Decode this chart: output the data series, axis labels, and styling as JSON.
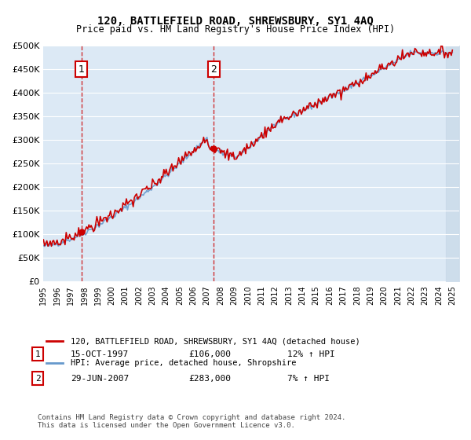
{
  "title": "120, BATTLEFIELD ROAD, SHREWSBURY, SY1 4AQ",
  "subtitle": "Price paid vs. HM Land Registry's House Price Index (HPI)",
  "legend_line1": "120, BATTLEFIELD ROAD, SHREWSBURY, SY1 4AQ (detached house)",
  "legend_line2": "HPI: Average price, detached house, Shropshire",
  "annotation1_label": "1",
  "annotation1_date": "15-OCT-1997",
  "annotation1_price": "£106,000",
  "annotation1_hpi": "12% ↑ HPI",
  "annotation1_year": 1997.79,
  "annotation1_value": 106000,
  "annotation2_label": "2",
  "annotation2_date": "29-JUN-2007",
  "annotation2_price": "£283,000",
  "annotation2_hpi": "7% ↑ HPI",
  "annotation2_year": 2007.49,
  "annotation2_value": 283000,
  "footer1": "Contains HM Land Registry data © Crown copyright and database right 2024.",
  "footer2": "This data is licensed under the Open Government Licence v3.0.",
  "ylim": [
    0,
    500000
  ],
  "yticks": [
    0,
    50000,
    100000,
    150000,
    200000,
    250000,
    300000,
    350000,
    400000,
    450000,
    500000
  ],
  "background_color": "#dce9f5",
  "plot_bg": "#dce9f5",
  "grid_color": "#ffffff",
  "red_color": "#cc0000",
  "blue_color": "#6699cc",
  "hatch_color": "#aabbcc"
}
